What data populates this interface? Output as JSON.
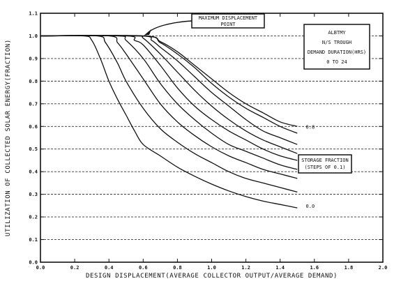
{
  "chart_data": {
    "type": "line",
    "xlabel": "DESIGN DISPLACEMENT(AVERAGE COLLECTOR OUTPUT/AVERAGE DEMAND)",
    "ylabel": "UTILIZATION OF COLLECTED SOLAR ENERGY(FRACTION)",
    "xlim": [
      0,
      2.0
    ],
    "ylim": [
      0,
      1.1
    ],
    "xticks": [
      "0.0",
      "0.2",
      "0.4",
      "0.6",
      "0.8",
      "1.0",
      "1.2",
      "1.4",
      "1.6",
      "1.8",
      "2.0"
    ],
    "yticks": [
      "0.0",
      "0.1",
      "0.2",
      "0.3",
      "0.4",
      "0.5",
      "0.6",
      "0.7",
      "0.8",
      "0.9",
      "1.0",
      "1.1"
    ],
    "grid": "horizontal-dashed",
    "info_box": [
      "ALBTMY",
      "N/S TROUGH",
      "DEMAND DURATION(HRS)",
      "0 TO 24"
    ],
    "max_point_note": [
      "MAXIMUM DISPLACEMENT",
      "POINT"
    ],
    "storage_note": [
      "STORAGE FRACTION",
      "(STEPS OF 0.1)"
    ],
    "curve_label_top": "0.8",
    "curve_label_bottom": "0.0",
    "series": [
      {
        "x": [
          0.0,
          0.25,
          0.3,
          0.35,
          0.4,
          0.45,
          0.5,
          0.55,
          0.6,
          0.7,
          0.8,
          0.9,
          1.0,
          1.1,
          1.2,
          1.3,
          1.4,
          1.5
        ],
        "values": [
          1.0,
          1.0,
          0.98,
          0.9,
          0.8,
          0.72,
          0.65,
          0.58,
          0.52,
          0.47,
          0.42,
          0.38,
          0.345,
          0.315,
          0.29,
          0.27,
          0.255,
          0.24
        ]
      },
      {
        "x": [
          0.0,
          0.33,
          0.38,
          0.45,
          0.5,
          0.6,
          0.7,
          0.8,
          0.9,
          1.0,
          1.1,
          1.2,
          1.3,
          1.4,
          1.5
        ],
        "values": [
          1.0,
          1.0,
          0.97,
          0.88,
          0.8,
          0.68,
          0.59,
          0.53,
          0.48,
          0.44,
          0.4,
          0.37,
          0.35,
          0.33,
          0.31
        ]
      },
      {
        "x": [
          0.0,
          0.4,
          0.45,
          0.5,
          0.6,
          0.7,
          0.8,
          0.9,
          1.0,
          1.1,
          1.2,
          1.3,
          1.4,
          1.5
        ],
        "values": [
          1.0,
          1.0,
          0.97,
          0.92,
          0.81,
          0.7,
          0.62,
          0.56,
          0.51,
          0.47,
          0.44,
          0.41,
          0.39,
          0.37
        ]
      },
      {
        "x": [
          0.0,
          0.45,
          0.5,
          0.6,
          0.7,
          0.8,
          0.9,
          1.0,
          1.1,
          1.2,
          1.3,
          1.4,
          1.5
        ],
        "values": [
          1.0,
          1.0,
          0.98,
          0.9,
          0.79,
          0.7,
          0.63,
          0.57,
          0.52,
          0.49,
          0.46,
          0.43,
          0.41
        ]
      },
      {
        "x": [
          0.0,
          0.5,
          0.55,
          0.6,
          0.7,
          0.8,
          0.9,
          1.0,
          1.1,
          1.2,
          1.3,
          1.4,
          1.5
        ],
        "values": [
          1.0,
          1.0,
          0.98,
          0.96,
          0.87,
          0.77,
          0.69,
          0.63,
          0.58,
          0.54,
          0.5,
          0.47,
          0.45
        ]
      },
      {
        "x": [
          0.0,
          0.55,
          0.6,
          0.7,
          0.8,
          0.9,
          1.0,
          1.1,
          1.2,
          1.3,
          1.4,
          1.5
        ],
        "values": [
          1.0,
          1.0,
          0.99,
          0.92,
          0.84,
          0.76,
          0.69,
          0.63,
          0.58,
          0.54,
          0.51,
          0.48
        ]
      },
      {
        "x": [
          0.0,
          0.58,
          0.65,
          0.7,
          0.8,
          0.9,
          1.0,
          1.1,
          1.2,
          1.3,
          1.4,
          1.5
        ],
        "values": [
          1.0,
          1.0,
          0.98,
          0.95,
          0.89,
          0.82,
          0.75,
          0.69,
          0.63,
          0.58,
          0.55,
          0.52
        ]
      },
      {
        "x": [
          0.0,
          0.6,
          0.7,
          0.8,
          0.9,
          1.0,
          1.1,
          1.2,
          1.3,
          1.4,
          1.5
        ],
        "values": [
          1.0,
          1.0,
          0.97,
          0.92,
          0.86,
          0.79,
          0.73,
          0.68,
          0.64,
          0.6,
          0.57
        ]
      },
      {
        "x": [
          0.0,
          0.6,
          0.7,
          0.8,
          0.9,
          1.0,
          1.1,
          1.2,
          1.3,
          1.4,
          1.5
        ],
        "values": [
          1.0,
          1.0,
          0.975,
          0.93,
          0.87,
          0.81,
          0.75,
          0.7,
          0.66,
          0.62,
          0.6
        ]
      }
    ]
  }
}
